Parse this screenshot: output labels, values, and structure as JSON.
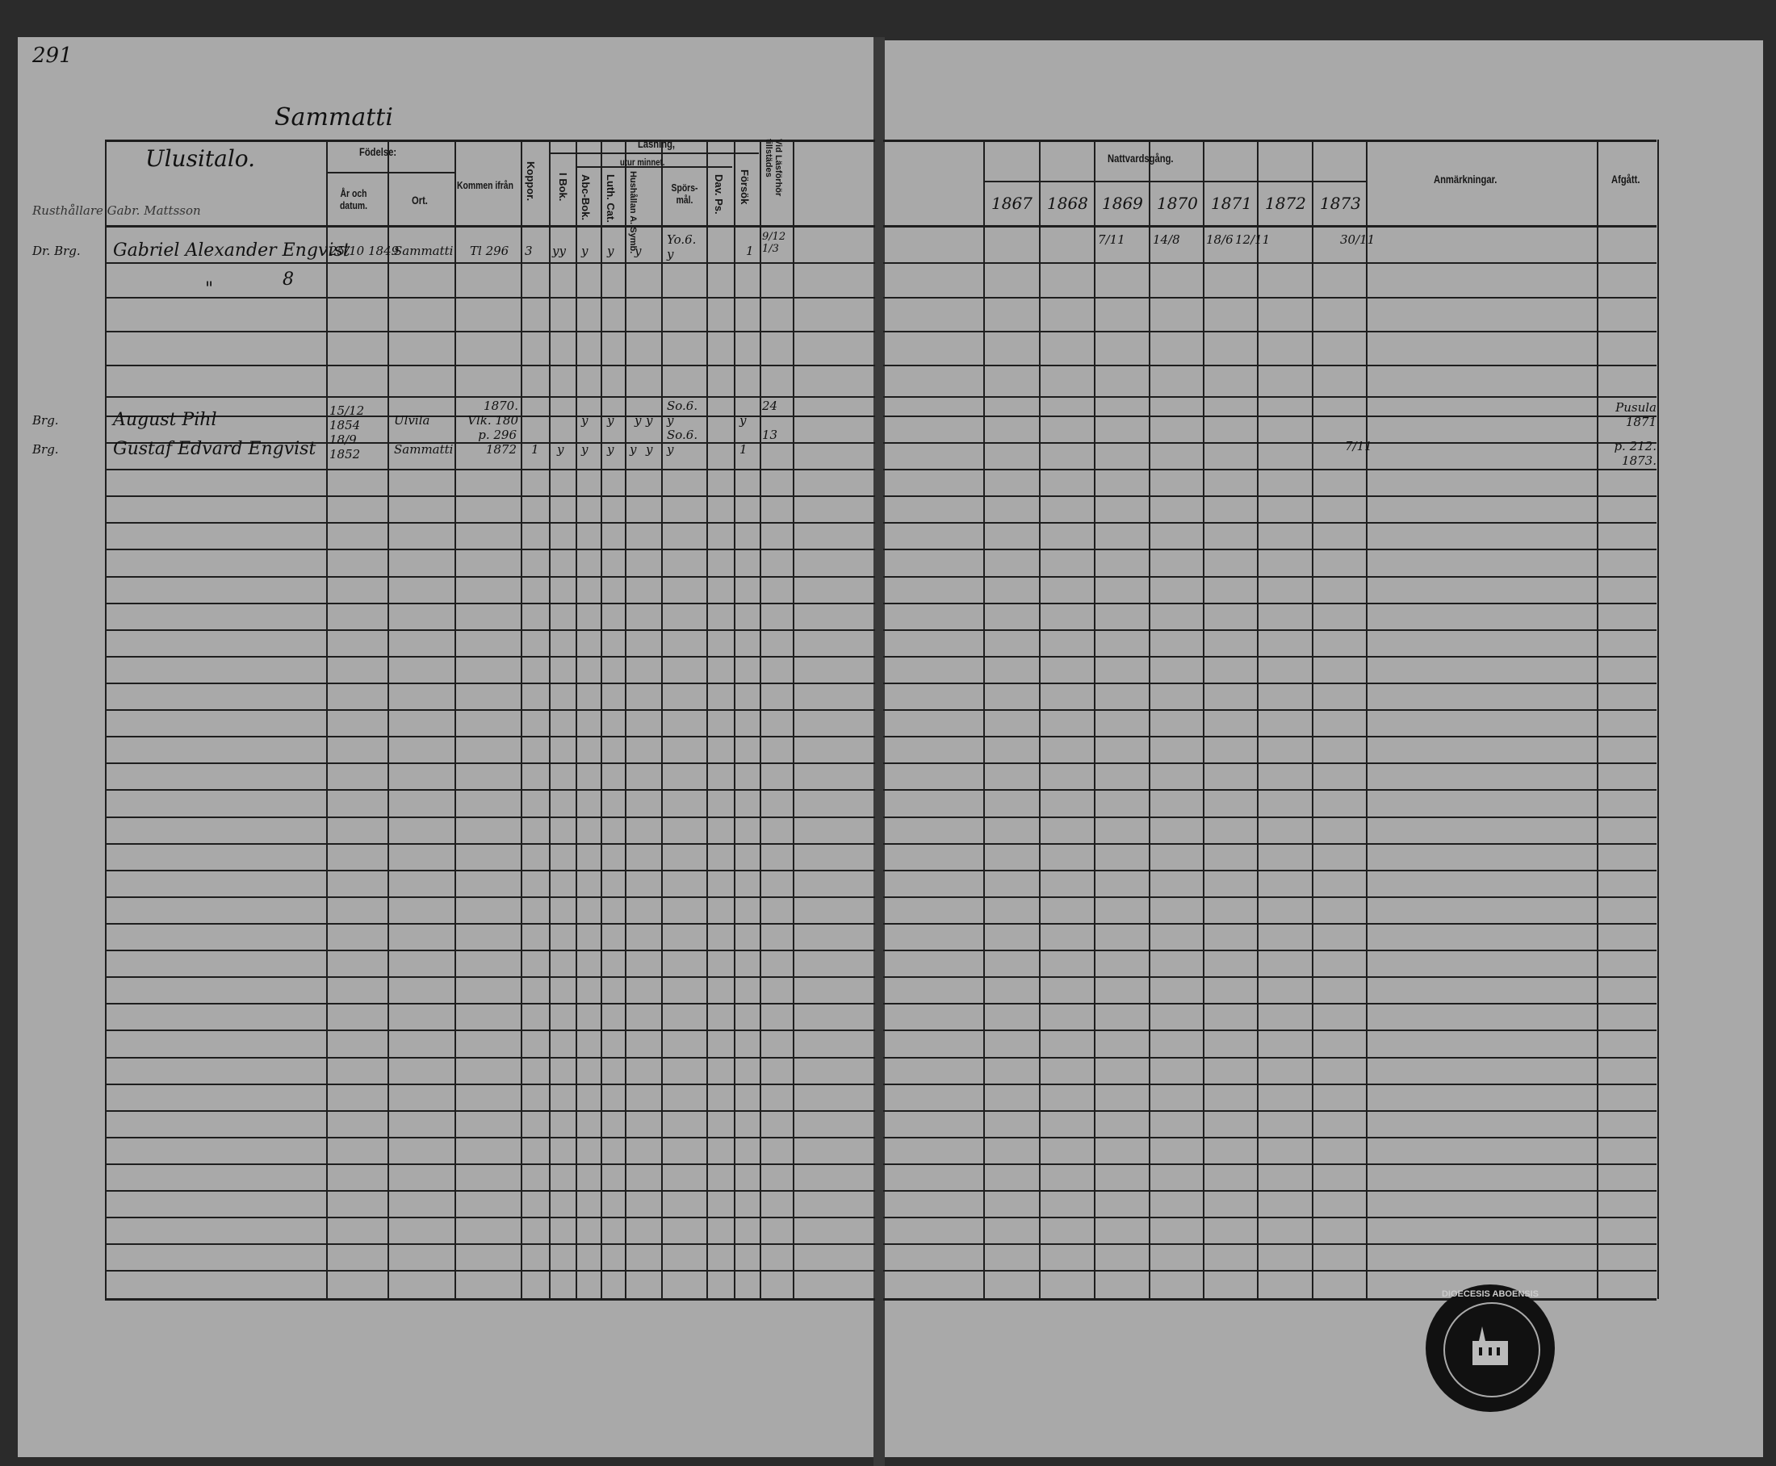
{
  "page_number": "291",
  "parish_heading": "Sammatti",
  "left_table": {
    "name_header": "Ulusitalo.",
    "headers": {
      "fodelse": "Födelse:",
      "ar": "År och datum.",
      "ort": "Ort.",
      "kommen": "Kommen ifrån",
      "koppor": "Koppor.",
      "lasning": "Läsning,",
      "i_bok": "I Bok.",
      "utur_minnet": "utur minnet.",
      "abc": "Abc-Bok.",
      "luth": "Luth. Cat.",
      "hushallan": "Hushållan A. Symb.",
      "sporsmal": "Spörs-mål.",
      "dav": "Dav. Ps.",
      "forsok": "Försök",
      "vid": "Vid Läsförhör tillstädes"
    },
    "note_above": "Rusthållare Gabr. Mattsson",
    "entries": [
      {
        "prefix": "Dr. Brg.",
        "name": "Gabriel Alexander Engvist",
        "born": "25/10 1849",
        "place": "Sammatti",
        "from": "Tl 296",
        "koppor": "3",
        "i_bok": "yy",
        "abc": "y",
        "luth": "y",
        "hush": "y",
        "spors": "Yo.6. y",
        "forsok": "1",
        "vid": "9/12 1/3",
        "mark": "8",
        "ditto": "\""
      },
      {
        "prefix": "Brg.",
        "name": "August Pihl",
        "born": "15/12 1854",
        "place": "Ulvila",
        "from": "1870. Vlk. 180",
        "abc": "y",
        "luth": "y",
        "hush": "y",
        "hush2": "y",
        "spors": "So.6. y",
        "forsok": "y",
        "vid": "24"
      },
      {
        "prefix": "Brg.",
        "name": "Gustaf Edvard Engvist",
        "born": "18/9 1852",
        "place": "Sammatti",
        "from": "p. 296 1872",
        "koppor": "1",
        "i_bok": "y",
        "abc": "y",
        "luth": "y",
        "hush": "y",
        "hush2": "y",
        "spors": "So.6. y",
        "forsok": "1",
        "vid": "13"
      }
    ]
  },
  "right_table": {
    "nattvard_header": "Nattvardsgång.",
    "years": [
      "1867",
      "1868",
      "1869",
      "1870",
      "1871",
      "1872",
      "1873"
    ],
    "anmarkningar": "Anmärkningar.",
    "afgatt": "Afgått.",
    "row1_dates": {
      "1869": "7/11",
      "1870": "14/8",
      "1871a": "18/6",
      "1871b": "12/11",
      "1873": "30/11"
    },
    "row3_dates": {
      "1873": "7/11"
    },
    "afgatt_entries": [
      "Pusula 1871",
      "p. 212. 1873."
    ]
  },
  "stamp": {
    "text": "DIOECESIS ABOENSIS"
  }
}
